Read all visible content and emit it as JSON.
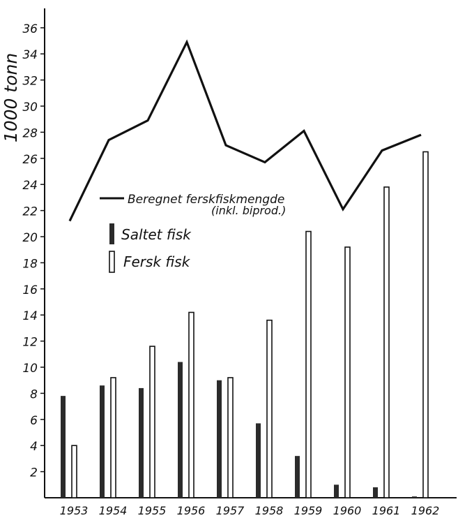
{
  "chart_data": {
    "type": "bar",
    "ylabel": "1000 tonn",
    "ylim": [
      0,
      37
    ],
    "y_ticks": [
      2,
      4,
      6,
      8,
      10,
      12,
      14,
      16,
      18,
      20,
      22,
      24,
      26,
      28,
      30,
      32,
      34,
      36
    ],
    "categories": [
      "1953",
      "1954",
      "1955",
      "1956",
      "1957",
      "1958",
      "1959",
      "1960",
      "1961",
      "1962"
    ],
    "series": [
      {
        "name": "Saltet fisk",
        "values": [
          7.8,
          8.6,
          8.4,
          10.4,
          9.0,
          5.7,
          3.2,
          1.0,
          0.8,
          0.1
        ],
        "color": "#2b2b2b",
        "kind": "bar"
      },
      {
        "name": "Fersk fisk",
        "values": [
          4.0,
          9.2,
          11.6,
          14.2,
          9.2,
          13.6,
          20.4,
          19.2,
          23.8,
          26.5
        ],
        "color": "#ffffff",
        "kind": "bar"
      },
      {
        "name": "Beregnet ferskfiskmengde",
        "values": [
          21.2,
          27.4,
          28.9,
          34.9,
          27.0,
          25.7,
          28.1,
          22.1,
          26.6,
          27.8
        ],
        "color": "#111111",
        "kind": "line"
      }
    ],
    "legend": {
      "line_label": "Beregnet ferskfiskmengde",
      "line_sublabel": "(inkl. biprod.)",
      "saltet_label": "Saltet fisk",
      "fersk_label": "Fersk fisk"
    },
    "grid": false
  }
}
